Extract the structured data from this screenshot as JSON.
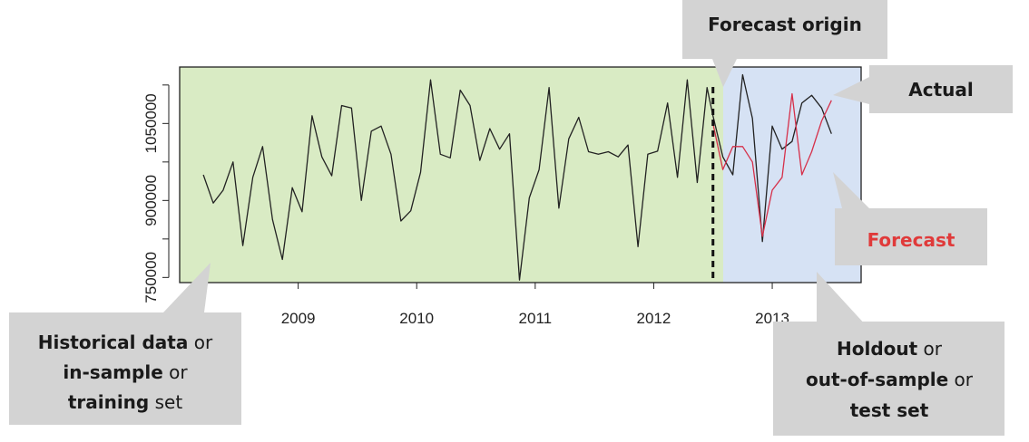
{
  "colors": {
    "in_sample_region": "#d9ebc4",
    "holdout_region": "#d6e2f4",
    "actual_line": "#222222",
    "forecast_line": "#d6304a",
    "callout_fill": "#d3d3d3",
    "forecast_label": "#e03a3a",
    "axis": "#222222"
  },
  "chart_data": {
    "type": "line",
    "x_ticks": [
      "2009",
      "2010",
      "2011",
      "2012",
      "2013"
    ],
    "y_ticks": [
      "750000",
      "900000",
      "1050000"
    ],
    "y_ticks_minor": [
      750000,
      825000,
      900000,
      975000,
      1050000,
      1125000
    ],
    "xlim": [
      2008.0,
      2013.75
    ],
    "ylim": [
      740000,
      1160000
    ],
    "forecast_origin": 2012.5,
    "series": [
      {
        "key": "actual",
        "x": [
          2008.2,
          2008.283,
          2008.367,
          2008.45,
          2008.533,
          2008.617,
          2008.7,
          2008.783,
          2008.867,
          2008.95,
          2009.033,
          2009.117,
          2009.2,
          2009.283,
          2009.367,
          2009.45,
          2009.533,
          2009.617,
          2009.7,
          2009.783,
          2009.867,
          2009.95,
          2010.033,
          2010.117,
          2010.2,
          2010.283,
          2010.367,
          2010.45,
          2010.533,
          2010.617,
          2010.7,
          2010.783,
          2010.867,
          2010.95,
          2011.033,
          2011.117,
          2011.2,
          2011.283,
          2011.367,
          2011.45,
          2011.533,
          2011.617,
          2011.7,
          2011.783,
          2011.867,
          2011.95,
          2012.033,
          2012.117,
          2012.2,
          2012.283,
          2012.367,
          2012.45,
          2012.5,
          2012.583,
          2012.667,
          2012.75,
          2012.833,
          2012.917,
          2013.0,
          2013.083,
          2013.167,
          2013.25,
          2013.333,
          2013.417,
          2013.5
        ],
        "y": [
          950000,
          895000,
          920000,
          975000,
          812000,
          945000,
          1005000,
          863000,
          785000,
          925000,
          878000,
          1065000,
          985000,
          948000,
          1085000,
          1080000,
          900000,
          1035000,
          1045000,
          990000,
          860000,
          880000,
          955000,
          1135000,
          990000,
          983000,
          1115000,
          1085000,
          978000,
          1040000,
          1000000,
          1030000,
          745000,
          905000,
          960000,
          1120000,
          885000,
          1020000,
          1062000,
          995000,
          990000,
          995000,
          985000,
          1008000,
          810000,
          990000,
          996000,
          1090000,
          945000,
          1135000,
          935000,
          1120000,
          1065000,
          985000,
          950000,
          1145000,
          1060000,
          820000,
          1045000,
          1000000,
          1015000,
          1090000,
          1105000,
          1080000,
          1030000
        ]
      },
      {
        "key": "forecast",
        "x": [
          2012.5,
          2012.583,
          2012.667,
          2012.75,
          2012.833,
          2012.917,
          2013.0,
          2013.083,
          2013.167,
          2013.25,
          2013.333,
          2013.417,
          2013.5
        ],
        "y": [
          1050000,
          960000,
          1005000,
          1005000,
          975000,
          830000,
          920000,
          945000,
          1108000,
          950000,
          995000,
          1055000,
          1095000
        ]
      }
    ]
  },
  "callouts": {
    "forecast_origin": {
      "parts": [
        {
          "text": "Forecast origin",
          "bold": true
        }
      ]
    },
    "actual": {
      "parts": [
        {
          "text": "Actual",
          "bold": true
        }
      ]
    },
    "forecast": {
      "parts": [
        {
          "text": "Forecast",
          "bold": true
        }
      ]
    },
    "historical": {
      "line1": [
        "Historical data",
        " or"
      ],
      "line2": [
        "in-sample",
        " or"
      ],
      "line3": [
        "training",
        " set"
      ]
    },
    "holdout": {
      "line1": [
        "Holdout",
        " or"
      ],
      "line2": [
        "out-of-sample",
        " or"
      ],
      "line3": [
        "test set",
        ""
      ]
    }
  }
}
